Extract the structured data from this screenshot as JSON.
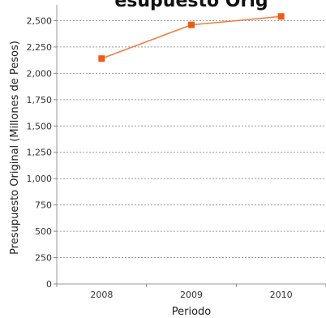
{
  "chart_data": {
    "type": "line",
    "title": "esupuesto Orig",
    "xlabel": "Periodo",
    "ylabel": "Presupuesto Original (Millones de Pesos)",
    "categories": [
      "2008",
      "2009",
      "2010"
    ],
    "series": [
      {
        "values": [
          2140,
          2460,
          2540
        ]
      }
    ],
    "ylim": [
      0,
      2650
    ],
    "yticks": [
      0,
      250,
      500,
      750,
      1000,
      1250,
      1500,
      1750,
      2000,
      2250,
      2500
    ],
    "ytick_labels": [
      "0",
      "250",
      "500",
      "750",
      "1,000",
      "1,250",
      "1,500",
      "1,750",
      "2,000",
      "2,250",
      "2,500"
    ],
    "grid": true,
    "line_color": "#f47a3a",
    "marker_color": "#f15a10"
  }
}
